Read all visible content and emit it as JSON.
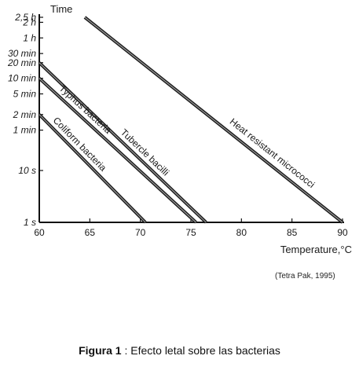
{
  "chart_data": {
    "type": "line",
    "ylabel": "Time",
    "xlabel": "Temperature,°C",
    "xlim": [
      60,
      90
    ],
    "x_ticks": [
      "60",
      "65",
      "70",
      "75",
      "80",
      "85",
      "90"
    ],
    "y_scale": "log",
    "y_ticks": [
      {
        "label": "2,5 h",
        "seconds": 9000
      },
      {
        "label": "2 h",
        "seconds": 7200
      },
      {
        "label": "1 h",
        "seconds": 3600
      },
      {
        "label": "30 min",
        "seconds": 1800
      },
      {
        "label": "20 min",
        "seconds": 1200
      },
      {
        "label": "10 min",
        "seconds": 600
      },
      {
        "label": "5 min",
        "seconds": 300
      },
      {
        "label": "2 min",
        "seconds": 120
      },
      {
        "label": "1 min",
        "seconds": 60
      },
      {
        "label": "10 s",
        "seconds": 10
      },
      {
        "label": "1 s",
        "seconds": 1
      }
    ],
    "grid": false,
    "series": [
      {
        "name": "Heat resistant micrococci",
        "x": [
          64.5,
          90
        ],
        "seconds": [
          9000,
          1
        ]
      },
      {
        "name": "Tubercle bacilli",
        "x": [
          60,
          76.5
        ],
        "seconds": [
          1200,
          1
        ]
      },
      {
        "name": "Typhus bacteria",
        "x": [
          60,
          75.5
        ],
        "seconds": [
          600,
          1
        ]
      },
      {
        "name": "Coliform bacteria",
        "x": [
          60,
          70.5
        ],
        "seconds": [
          120,
          1
        ]
      }
    ]
  },
  "source": "(Tetra Pak, 1995)",
  "caption": {
    "label": "Figura 1",
    "separator": " : ",
    "text": "Efecto letal sobre las bacterias"
  }
}
